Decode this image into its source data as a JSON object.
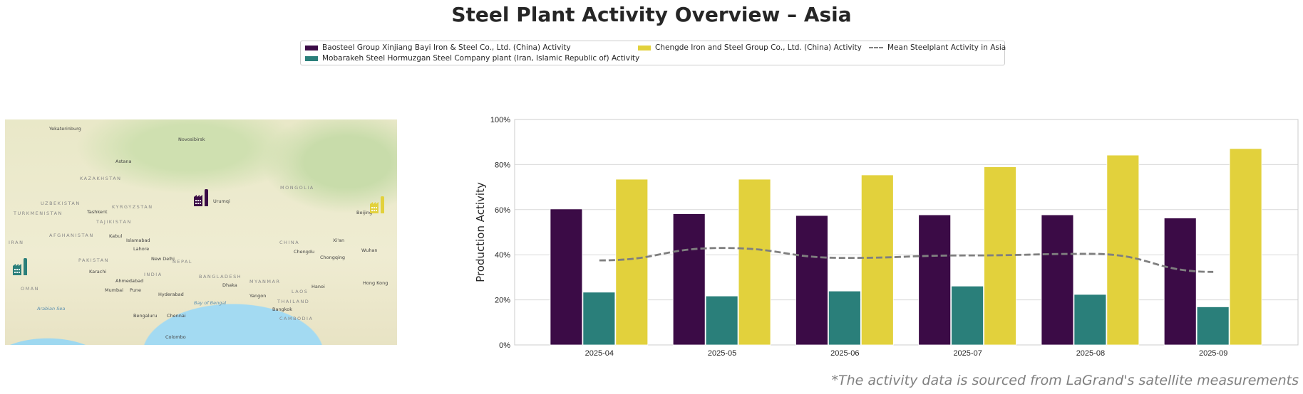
{
  "title": "Steel Plant Activity Overview – Asia",
  "footnote": "*The activity data is sourced from LaGrand's satellite measurements",
  "legend": [
    {
      "label": "Baosteel Group Xinjiang Bayi Iron & Steel Co., Ltd. (China) Activity",
      "color": "#3b0b46"
    },
    {
      "label": "Mobarakeh Steel Hormuzgan Steel Company plant (Iran, Islamic Republic of) Activity",
      "color": "#2a7f7a"
    },
    {
      "label": "Chengde Iron and Steel Group Co., Ltd. (China) Activity",
      "color": "#e2d13c"
    },
    {
      "label": "Mean Steelplant Activity in Asia",
      "color": "#7f7f7f"
    }
  ],
  "map": {
    "cities": [
      "Yekaterinburg",
      "Novosibirsk",
      "Astana",
      "Tashkent",
      "Kabul",
      "Islamabad",
      "Lahore",
      "New Delhi",
      "Karachi",
      "Ahmedabad",
      "Mumbai",
      "Pune",
      "Hyderabad",
      "Bengaluru",
      "Chennai",
      "Colombo",
      "Dhaka",
      "Yangon",
      "Bangkok",
      "Hanoi",
      "Chengdu",
      "Chongqing",
      "Xi'an",
      "Beijing",
      "Wuhan",
      "Hong Kong",
      "Urumqi"
    ],
    "countries": [
      "KAZAKHSTAN",
      "MONGOLIA",
      "UZBEKISTAN",
      "KYRGYZSTAN",
      "TURKMENISTAN",
      "TAJIKISTAN",
      "AFGHANISTAN",
      "IRAN",
      "PAKISTAN",
      "INDIA",
      "NEPAL",
      "CHINA",
      "BANGLADESH",
      "MYANMAR",
      "OMAN",
      "THAILAND",
      "LAOS",
      "CAMBODIA"
    ],
    "seas": [
      "Arabian Sea",
      "Bay of Bengal"
    ]
  },
  "chart_data": {
    "type": "bar",
    "categories": [
      "2025-04",
      "2025-05",
      "2025-06",
      "2025-07",
      "2025-08",
      "2025-09"
    ],
    "ylabel": "Production Activity",
    "xlabel": "",
    "ylim": [
      0,
      100
    ],
    "yticks": [
      "0%",
      "20%",
      "40%",
      "60%",
      "80%",
      "100%"
    ],
    "grid": true,
    "legend_position": "top-center",
    "series": [
      {
        "name": "Baosteel Group Xinjiang Bayi Iron & Steel Co., Ltd. (China) Activity",
        "color": "#3b0b46",
        "values": [
          60.3,
          58.2,
          57.4,
          57.7,
          57.7,
          56.3
        ]
      },
      {
        "name": "Mobarakeh Steel Hormuzgan Steel Company plant (Iran, Islamic Republic of) Activity",
        "color": "#2a7f7a",
        "values": [
          23.4,
          21.7,
          23.9,
          26.1,
          22.4,
          16.9
        ]
      },
      {
        "name": "Chengde Iron and Steel Group Co., Ltd. (China) Activity",
        "color": "#e2d13c",
        "values": [
          73.5,
          73.5,
          75.4,
          79.0,
          84.2,
          87.1
        ]
      }
    ],
    "line": {
      "name": "Mean Steelplant Activity in Asia",
      "color": "#7f7f7f",
      "style": "dashed",
      "values": [
        37.5,
        43.0,
        38.6,
        39.7,
        40.4,
        32.4
      ]
    }
  }
}
